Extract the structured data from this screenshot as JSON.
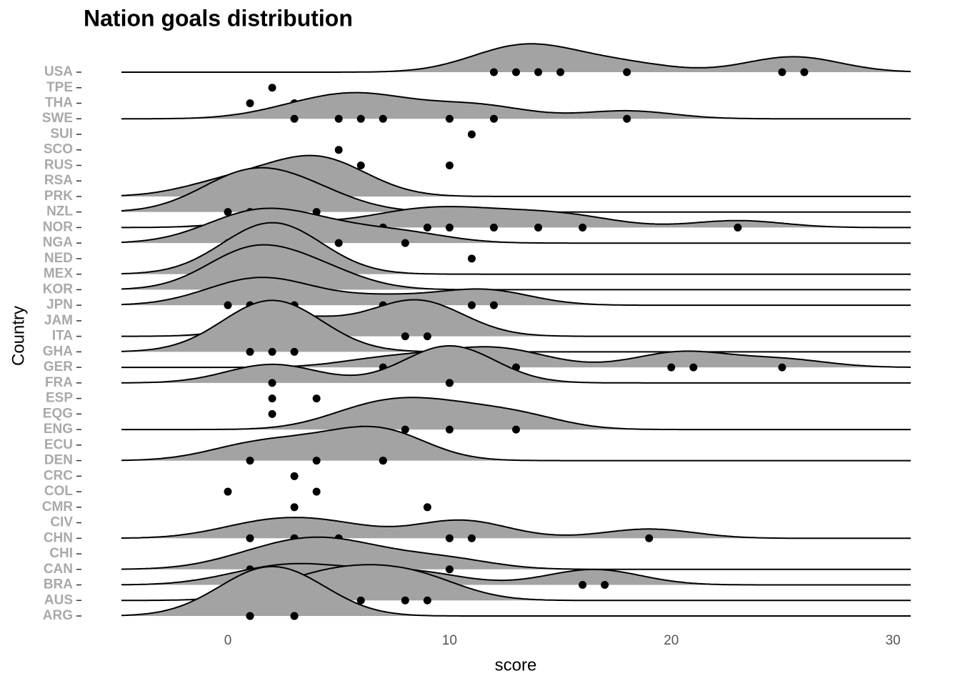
{
  "chart_data": {
    "type": "ridgeline",
    "title": "Nation goals distribution",
    "x_label": "score",
    "y_label": "Country",
    "categories": [
      "USA",
      "TPE",
      "THA",
      "SWE",
      "SUI",
      "SCO",
      "RUS",
      "RSA",
      "PRK",
      "NZL",
      "NOR",
      "NGA",
      "NED",
      "MEX",
      "KOR",
      "JPN",
      "JAM",
      "ITA",
      "GHA",
      "GER",
      "FRA",
      "ESP",
      "EQG",
      "ENG",
      "ECU",
      "DEN",
      "CRC",
      "COL",
      "CMR",
      "CIV",
      "CHN",
      "CHI",
      "CAN",
      "BRA",
      "AUS",
      "ARG"
    ],
    "points": [
      [
        12,
        13,
        14,
        15,
        18,
        25,
        26
      ],
      [
        2
      ],
      [
        1,
        3
      ],
      [
        3,
        5,
        6,
        7,
        10,
        12,
        18
      ],
      [
        11
      ],
      [
        5
      ],
      [
        6,
        10
      ],
      [
        1
      ],
      [
        0,
        3,
        4,
        5
      ],
      [
        0,
        1,
        2,
        4
      ],
      [
        2,
        7,
        9,
        10,
        12,
        14,
        16,
        23
      ],
      [
        0,
        1,
        2,
        3,
        5,
        8
      ],
      [
        4,
        11
      ],
      [
        1,
        2,
        3
      ],
      [
        1,
        1,
        4
      ],
      [
        0,
        1,
        2,
        3,
        7,
        11,
        12
      ],
      [
        1
      ],
      [
        3,
        8,
        9
      ],
      [
        1,
        2,
        3
      ],
      [
        7,
        10,
        12,
        13,
        20,
        21,
        25
      ],
      [
        2,
        10,
        10
      ],
      [
        2,
        4
      ],
      [
        2
      ],
      [
        6,
        8,
        10,
        13
      ],
      [
        1
      ],
      [
        1,
        4,
        7,
        7
      ],
      [
        3
      ],
      [
        0,
        4
      ],
      [
        3,
        9
      ],
      [
        3
      ],
      [
        1,
        3,
        5,
        10,
        11,
        19
      ],
      [
        2
      ],
      [
        1,
        3,
        4,
        5,
        7,
        10
      ],
      [
        1,
        3,
        4,
        7,
        9,
        16,
        17
      ],
      [
        3,
        5,
        6,
        8,
        9
      ],
      [
        1,
        1,
        3,
        3
      ]
    ],
    "fill": "#a3a3a3",
    "line_color": "#000000",
    "point_color": "#000000",
    "xlim": [
      -4.8,
      30.8
    ],
    "xticks": [
      0,
      10,
      20,
      30
    ]
  }
}
